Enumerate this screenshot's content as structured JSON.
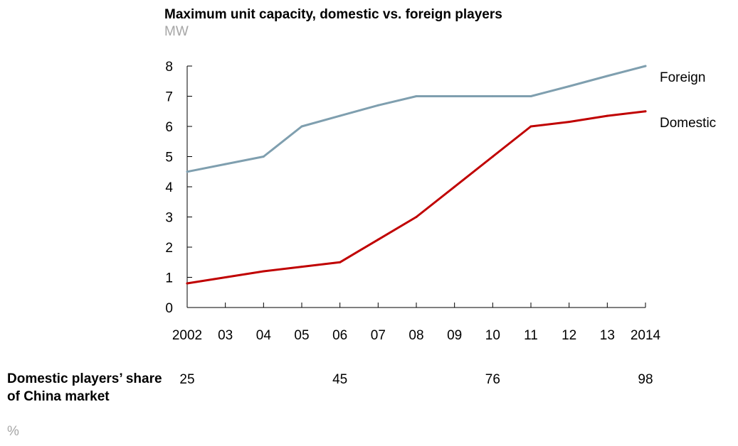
{
  "chart_data": {
    "type": "line",
    "title": "Maximum unit capacity, domestic vs. foreign players",
    "unit": "MW",
    "x": [
      "2002",
      "03",
      "04",
      "05",
      "06",
      "07",
      "08",
      "09",
      "10",
      "11",
      "12",
      "13",
      "2014"
    ],
    "yticks": [
      0,
      1,
      2,
      3,
      4,
      5,
      6,
      7,
      8
    ],
    "ylim": [
      0,
      8
    ],
    "grid": false,
    "legend": "end-of-line labels",
    "series": [
      {
        "name": "Foreign",
        "color": "#7f9faf",
        "values": [
          4.5,
          4.75,
          5.0,
          6.0,
          6.35,
          6.7,
          7.0,
          7.0,
          7.0,
          7.0,
          7.33,
          7.67,
          8.0
        ]
      },
      {
        "name": "Domestic",
        "color": "#c00000",
        "values": [
          0.8,
          1.0,
          1.2,
          1.35,
          1.5,
          2.25,
          3.0,
          4.0,
          5.0,
          6.0,
          6.15,
          6.35,
          6.5
        ]
      }
    ],
    "share_row": {
      "label": "Domestic players’ share of China market",
      "unit": "%",
      "entries": [
        {
          "x": "2002",
          "value": "25"
        },
        {
          "x": "06",
          "value": "45"
        },
        {
          "x": "10",
          "value": "76"
        },
        {
          "x": "2014",
          "value": "98"
        }
      ]
    }
  }
}
